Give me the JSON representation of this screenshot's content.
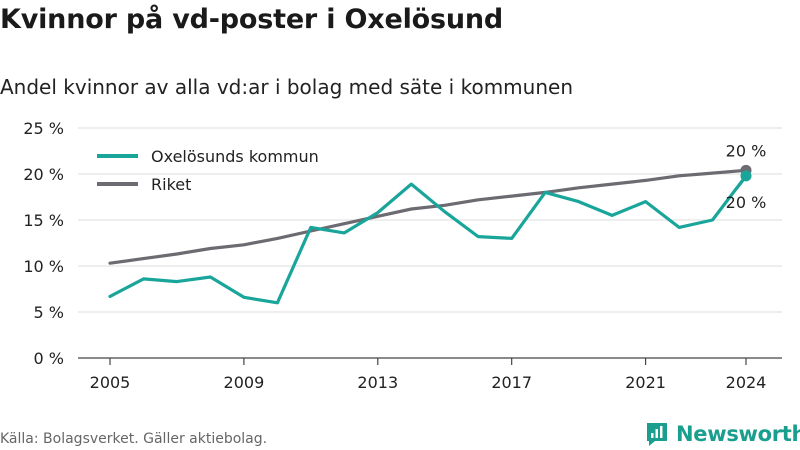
{
  "header": {
    "title": "Kvinnor på vd-poster i Oxelösund",
    "subtitle": "Andel kvinnor av alla vd:ar i bolag med säte i kommunen"
  },
  "footer": {
    "source": "Källa: Bolagsverket. Gäller aktiebolag.",
    "brand": "Newsworthy"
  },
  "colors": {
    "local": "#1aa59b",
    "national": "#6d6b72",
    "grid": "#dddddd",
    "brand": "#1a9e8e"
  },
  "chart_data": {
    "type": "line",
    "x": [
      2005,
      2006,
      2007,
      2008,
      2009,
      2010,
      2011,
      2012,
      2013,
      2014,
      2015,
      2016,
      2017,
      2018,
      2019,
      2020,
      2021,
      2022,
      2023,
      2024
    ],
    "series": [
      {
        "name": "Oxelösunds kommun",
        "values": [
          6.7,
          8.6,
          8.3,
          8.8,
          6.6,
          6.0,
          14.2,
          13.6,
          15.8,
          18.9,
          15.9,
          13.2,
          13.0,
          18.0,
          17.0,
          15.5,
          17.0,
          14.2,
          15.0,
          19.8
        ],
        "end_label": "20 %"
      },
      {
        "name": "Riket",
        "values": [
          10.3,
          10.8,
          11.3,
          11.9,
          12.3,
          13.0,
          13.8,
          14.6,
          15.4,
          16.2,
          16.6,
          17.2,
          17.6,
          18.0,
          18.5,
          18.9,
          19.3,
          19.8,
          20.1,
          20.4
        ],
        "end_label": "20 %"
      }
    ],
    "yticks": [
      "0 %",
      "5 %",
      "10 %",
      "15 %",
      "20 %",
      "25 %"
    ],
    "ytick_values": [
      0,
      5,
      10,
      15,
      20,
      25
    ],
    "xticks": [
      2005,
      2009,
      2013,
      2017,
      2021,
      2024
    ],
    "ylim": [
      0,
      25
    ],
    "xlim": [
      2005,
      2024
    ],
    "grid": true,
    "legend_position": "top-left"
  }
}
